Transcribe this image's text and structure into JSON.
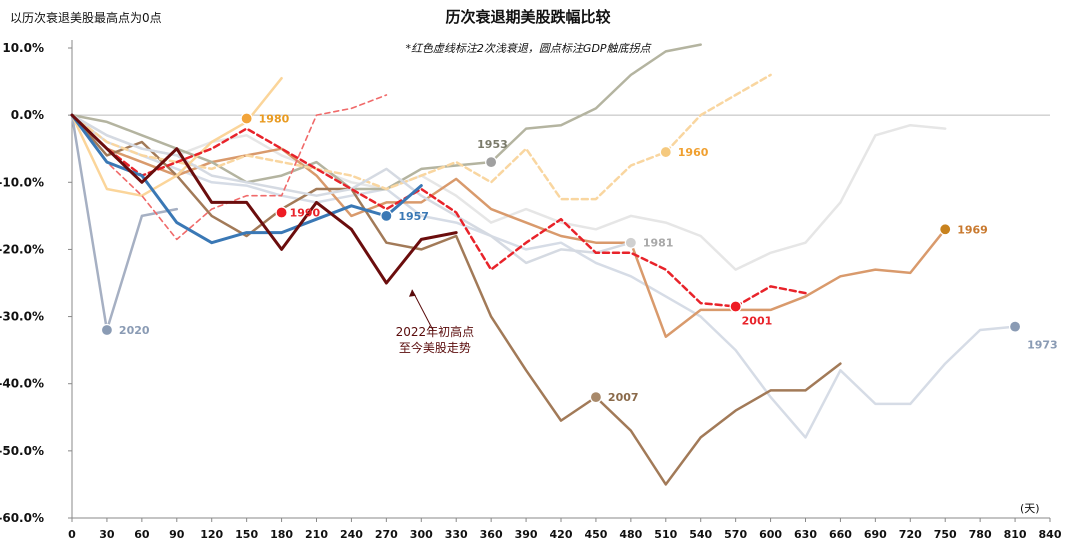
{
  "chart_data": {
    "type": "line",
    "title": "历次衰退期美股跌幅比较",
    "subtitle": "*红色虚线标注2次浅衰退，圆点标注GDP触底拐点",
    "ylabel": "以历次衰退美股最高点为0点",
    "xlabel": "(天)",
    "xlim": [
      0,
      840
    ],
    "ylim": [
      -60,
      10
    ],
    "x_ticks": [
      0,
      30,
      60,
      90,
      120,
      150,
      180,
      210,
      240,
      270,
      300,
      330,
      360,
      390,
      420,
      450,
      480,
      510,
      540,
      570,
      600,
      630,
      660,
      690,
      720,
      750,
      780,
      810,
      840
    ],
    "y_ticks": [
      10,
      0,
      -10,
      -20,
      -30,
      -40,
      -50,
      -60
    ],
    "y_tick_labels": [
      "10.0%",
      "0.0%",
      "-10.0%",
      "-20.0%",
      "-30.0%",
      "-40.0%",
      "-50.0%",
      "-60.0%"
    ],
    "series": [
      {
        "name": "1973",
        "color": "#d6dce6",
        "width": 2.5,
        "dash": "",
        "label_color": "#8a9bb4",
        "x": [
          0,
          30,
          60,
          90,
          120,
          150,
          180,
          210,
          240,
          270,
          300,
          330,
          360,
          390,
          420,
          450,
          480,
          510,
          540,
          570,
          600,
          630,
          660,
          690,
          720,
          750,
          780,
          810
        ],
        "y": [
          0,
          -4,
          -6,
          -8,
          -10,
          -10.5,
          -12,
          -13,
          -12,
          -11,
          -15,
          -16,
          -18,
          -20,
          -19,
          -22,
          -24,
          -27,
          -30,
          -35,
          -42,
          -48,
          -38,
          -43,
          -43,
          -37,
          -32,
          -31.5
        ],
        "marker": {
          "x": 810,
          "y": -31.5,
          "color": "#8a9bb4"
        },
        "label": "1973",
        "label_dx": 12,
        "label_dy": 22
      },
      {
        "name": "1957-dotted",
        "color": "#e6e6e6",
        "width": 2.5,
        "dash": "",
        "label_color": "",
        "x": [
          0,
          30,
          60,
          90,
          120,
          150,
          180,
          210,
          240,
          270,
          300,
          330,
          360,
          390,
          420,
          450,
          480,
          510,
          540,
          570,
          600,
          630,
          660,
          690,
          720,
          750
        ],
        "y": [
          0,
          -3,
          -5,
          -6,
          -4,
          -3,
          -6,
          -8,
          -10,
          -11,
          -9,
          -12,
          -16,
          -14,
          -16,
          -17,
          -15,
          -16,
          -18,
          -23,
          -20.5,
          -19,
          -13,
          -3,
          -1.5,
          -2
        ],
        "marker": null,
        "label": ""
      },
      {
        "name": "1969",
        "color": "#d99a6c",
        "width": 2.5,
        "dash": "",
        "label_color": "#c8792e",
        "x": [
          0,
          30,
          60,
          90,
          120,
          150,
          180,
          210,
          240,
          270,
          300,
          330,
          360,
          390,
          420,
          450,
          480,
          510,
          540,
          570,
          600,
          630,
          660,
          690,
          720,
          750
        ],
        "y": [
          0,
          -5,
          -7,
          -9,
          -7,
          -6,
          -5,
          -9,
          -15,
          -13,
          -13,
          -9.5,
          -14,
          -16,
          -18,
          -19,
          -19,
          -33,
          -29,
          -29,
          -29,
          -27,
          -24,
          -23,
          -23.5,
          -17
        ],
        "marker": {
          "x": 750,
          "y": -17,
          "color": "#c8821e"
        },
        "label": "1969",
        "label_dx": 12,
        "label_dy": 4
      },
      {
        "name": "2007",
        "color": "#a27a58",
        "width": 2.5,
        "dash": "",
        "label_color": "#8a6a4a",
        "x": [
          0,
          30,
          60,
          90,
          120,
          150,
          180,
          210,
          240,
          270,
          300,
          330,
          360,
          390,
          420,
          450,
          480,
          510,
          540,
          570,
          600,
          630,
          660
        ],
        "y": [
          0,
          -6,
          -4,
          -9,
          -15,
          -18,
          -14,
          -11,
          -11,
          -19,
          -20,
          -18,
          -30,
          -38,
          -45.5,
          -42,
          -47,
          -55,
          -48,
          -44,
          -41,
          -41,
          -37
        ],
        "marker": {
          "x": 450,
          "y": -42,
          "color": "#a8896a"
        },
        "label": "2007",
        "label_dx": 12,
        "label_dy": 4
      },
      {
        "name": "1953",
        "color": "#b4b4a0",
        "width": 2.5,
        "dash": "",
        "label_color": "#7a7a6a",
        "x": [
          0,
          30,
          60,
          90,
          120,
          150,
          180,
          210,
          240,
          270,
          300,
          330,
          360,
          390,
          420,
          450,
          480,
          510,
          540
        ],
        "y": [
          0,
          -1,
          -3,
          -5,
          -7,
          -10,
          -9,
          -7,
          -11,
          -11,
          -8,
          -7.5,
          -7,
          -2,
          -1.5,
          1,
          6,
          9.5,
          10.5
        ],
        "marker": {
          "x": 360,
          "y": -7,
          "color": "#a0a0a0"
        },
        "label": "1953",
        "label_dx": -14,
        "label_dy": -14
      },
      {
        "name": "1960",
        "color": "#f9d6a0",
        "width": 2.5,
        "dash": "6,4",
        "label_color": "#f0a030",
        "x": [
          0,
          30,
          60,
          90,
          120,
          150,
          180,
          210,
          240,
          270,
          300,
          330,
          360,
          390,
          420,
          450,
          480,
          510,
          540,
          570,
          600
        ],
        "y": [
          0,
          -4,
          -6,
          -7,
          -8,
          -6,
          -7,
          -8,
          -9,
          -11,
          -9,
          -7,
          -10,
          -5,
          -12.5,
          -12.5,
          -7.5,
          -5.5,
          0,
          3,
          6
        ],
        "marker": {
          "x": 510,
          "y": -5.5,
          "color": "#f5c97e"
        },
        "label": "1960",
        "label_dx": 12,
        "label_dy": 4
      },
      {
        "name": "1981",
        "color": "#d5dae2",
        "width": 2.5,
        "dash": "",
        "label_color": "#a8a8a8",
        "x": [
          0,
          30,
          60,
          90,
          120,
          150,
          180,
          210,
          240,
          270,
          300,
          330,
          360,
          390,
          420,
          450,
          480
        ],
        "y": [
          0,
          -3,
          -5,
          -6,
          -9,
          -10,
          -11,
          -12,
          -11,
          -8,
          -12,
          -15,
          -18,
          -22,
          -20,
          -20.5,
          -19
        ],
        "marker": {
          "x": 480,
          "y": -19,
          "color": "#d0d0d0"
        },
        "label": "1981",
        "label_dx": 12,
        "label_dy": 4
      },
      {
        "name": "2020",
        "color": "#a6b0c3",
        "width": 2.5,
        "dash": "",
        "label_color": "#8a9bb4",
        "x": [
          0,
          30,
          60,
          90
        ],
        "y": [
          0,
          -32,
          -15,
          -14
        ],
        "marker": {
          "x": 30,
          "y": -32,
          "color": "#8a9bb4"
        },
        "label": "2020",
        "label_dx": 12,
        "label_dy": 4
      },
      {
        "name": "1980",
        "color": "#fbd59a",
        "width": 2.5,
        "dash": "",
        "label_color": "#e89a20",
        "x": [
          0,
          30,
          60,
          90,
          120,
          150,
          180
        ],
        "y": [
          0,
          -11,
          -12,
          -9,
          -4,
          -1,
          5.5
        ],
        "marker": {
          "x": 150,
          "y": -0.5,
          "color": "#f2a43a"
        },
        "label": "1980",
        "label_dx": 12,
        "label_dy": 4
      },
      {
        "name": "1990-thin",
        "color": "#f06a6a",
        "width": 1.6,
        "dash": "5,4",
        "label_color": "",
        "x": [
          0,
          30,
          60,
          90,
          120,
          150,
          180,
          210,
          240,
          270
        ],
        "y": [
          0,
          -7,
          -12,
          -18.5,
          -14,
          -12,
          -12,
          0,
          1,
          3
        ],
        "marker": null,
        "label": ""
      },
      {
        "name": "1990",
        "color": "#e8232a",
        "width": 2.5,
        "dash": "6,4",
        "label_color": "#e8232a",
        "x": [
          0,
          30,
          60,
          90,
          120,
          150,
          180,
          210,
          240,
          270,
          300,
          330,
          360,
          390,
          420,
          450,
          480,
          510,
          540,
          570,
          600,
          630
        ],
        "y": [
          0,
          -5,
          -9,
          -7,
          -5,
          -2,
          -5,
          -8,
          -11,
          -14,
          -11,
          -14.5,
          -23,
          -19,
          -15.5,
          -20.5,
          -20.5,
          -23,
          -28,
          -28.5,
          -25.5,
          -26.5
        ],
        "marker": {
          "x": 180,
          "y": -14.5,
          "color": "#ee1c24"
        },
        "label": "1990",
        "label_dx": 8,
        "label_dy": 0
      },
      {
        "name": "2001",
        "color": "#e8232a",
        "width": 0,
        "dash": "",
        "label_color": "#e8232a",
        "x": [],
        "y": [],
        "marker": {
          "x": 570,
          "y": -28.5,
          "color": "#ee1c24"
        },
        "label": "2001",
        "label_dx": 6,
        "label_dy": 18
      },
      {
        "name": "1957",
        "color": "#3a78b5",
        "width": 3,
        "dash": "",
        "label_color": "#3a78b5",
        "x": [
          0,
          30,
          60,
          90,
          120,
          150,
          180,
          210,
          240,
          270,
          300
        ],
        "y": [
          0,
          -7,
          -9,
          -16,
          -19,
          -17.5,
          -17.5,
          -15.5,
          -13.5,
          -15,
          -10.5
        ],
        "marker": {
          "x": 270,
          "y": -15,
          "color": "#3a78b5"
        },
        "label": "1957",
        "label_dx": 12,
        "label_dy": 4
      },
      {
        "name": "2022",
        "color": "#6b0d0d",
        "width": 3,
        "dash": "",
        "label_color": "",
        "x": [
          0,
          30,
          60,
          90,
          120,
          150,
          180,
          210,
          240,
          270,
          300,
          330
        ],
        "y": [
          0,
          -5,
          -10,
          -5,
          -13,
          -13,
          -20,
          -13,
          -17,
          -25,
          -18.5,
          -17.5
        ],
        "marker": null,
        "label": ""
      }
    ],
    "annotation": {
      "text_lines": [
        "2022年初高点",
        "至今美股走势"
      ],
      "points_to": {
        "x": 292,
        "y": -26
      },
      "anchor": {
        "x": 310,
        "y": -32
      }
    }
  }
}
